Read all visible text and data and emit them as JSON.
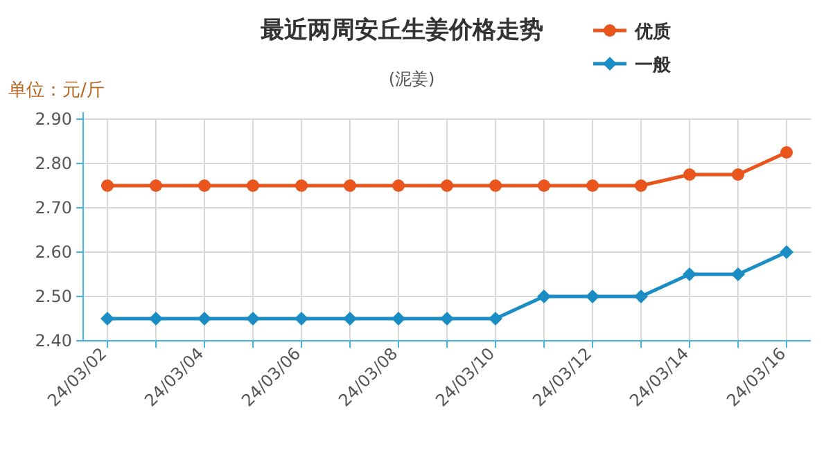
{
  "chart_data": {
    "type": "line",
    "title": "最近两周安丘生姜价格走势",
    "subtitle": "(泥姜)",
    "ylabel": "单位：元/斤",
    "categories": [
      "24/03/02",
      null,
      "24/03/04",
      null,
      "24/03/06",
      null,
      "24/03/08",
      null,
      "24/03/10",
      null,
      "24/03/12",
      null,
      "24/03/14",
      null,
      "24/03/16"
    ],
    "series": [
      {
        "name": "优质",
        "color": "#e8561e",
        "marker": "circle",
        "values": [
          2.75,
          2.75,
          2.75,
          2.75,
          2.75,
          2.75,
          2.75,
          2.75,
          2.75,
          2.75,
          2.75,
          2.75,
          2.775,
          2.775,
          2.825
        ]
      },
      {
        "name": "一般",
        "color": "#1a8dc5",
        "marker": "diamond",
        "values": [
          2.45,
          2.45,
          2.45,
          2.45,
          2.45,
          2.45,
          2.45,
          2.45,
          2.45,
          2.5,
          2.5,
          2.5,
          2.55,
          2.55,
          2.6
        ]
      }
    ],
    "ylim": [
      2.4,
      2.9
    ],
    "yticks": [
      {
        "value": 2.4,
        "label": "2.40"
      },
      {
        "value": 2.5,
        "label": "2.50"
      },
      {
        "value": 2.6,
        "label": "2.60"
      },
      {
        "value": 2.7,
        "label": "2.70"
      },
      {
        "value": 2.8,
        "label": "2.80"
      },
      {
        "value": 2.9,
        "label": "2.90"
      }
    ],
    "grid": true,
    "legend": "top right",
    "line_style": "solid"
  }
}
